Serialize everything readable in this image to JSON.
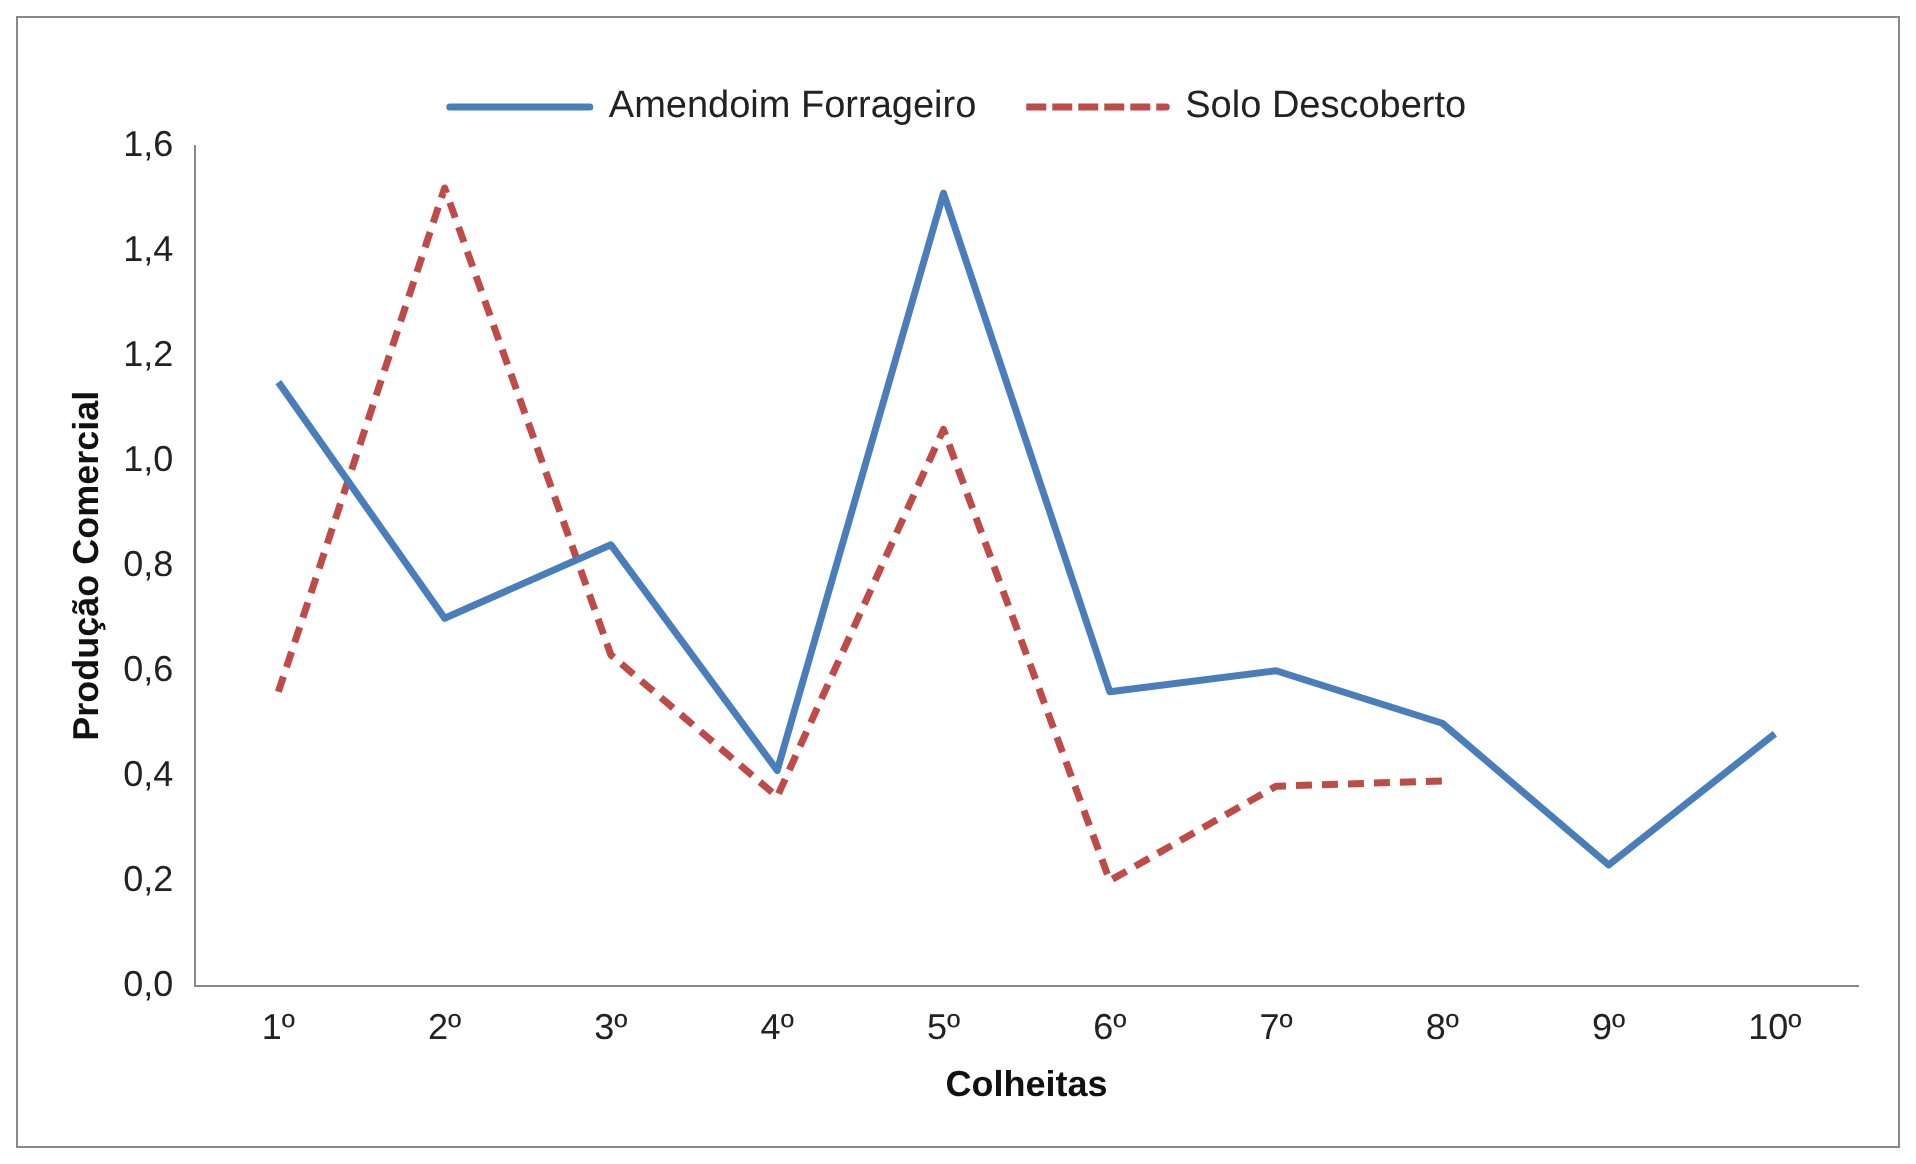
{
  "chart_data": {
    "type": "line",
    "xlabel": "Colheitas",
    "ylabel": "Produção Comercial",
    "categories": [
      "1º",
      "2º",
      "3º",
      "4º",
      "5º",
      "6º",
      "7º",
      "8º",
      "9º",
      "10º"
    ],
    "series": [
      {
        "name": "Amendoim Forrageiro",
        "color": "#4a7ebb",
        "line_style": "solid",
        "values": [
          1.15,
          0.7,
          0.84,
          0.41,
          1.51,
          0.56,
          0.6,
          0.5,
          0.23,
          0.48
        ]
      },
      {
        "name": "Solo Descoberto",
        "color": "#be4b48",
        "line_style": "dashed",
        "values": [
          0.56,
          1.52,
          0.63,
          0.36,
          1.06,
          0.2,
          0.38,
          0.39,
          null,
          null
        ]
      }
    ],
    "ylim": [
      0,
      1.6
    ],
    "yticks": [
      {
        "value": 0,
        "label": "0,0"
      },
      {
        "value": 0.2,
        "label": "0,2"
      },
      {
        "value": 0.4,
        "label": "0,4"
      },
      {
        "value": 0.6,
        "label": "0,6"
      },
      {
        "value": 0.8,
        "label": "0,8"
      },
      {
        "value": 1.0,
        "label": "1,0"
      },
      {
        "value": 1.2,
        "label": "1,2"
      },
      {
        "value": 1.4,
        "label": "1,4"
      },
      {
        "value": 1.6,
        "label": "1,6"
      }
    ],
    "grid": false,
    "legend": "top",
    "marker": "none"
  }
}
